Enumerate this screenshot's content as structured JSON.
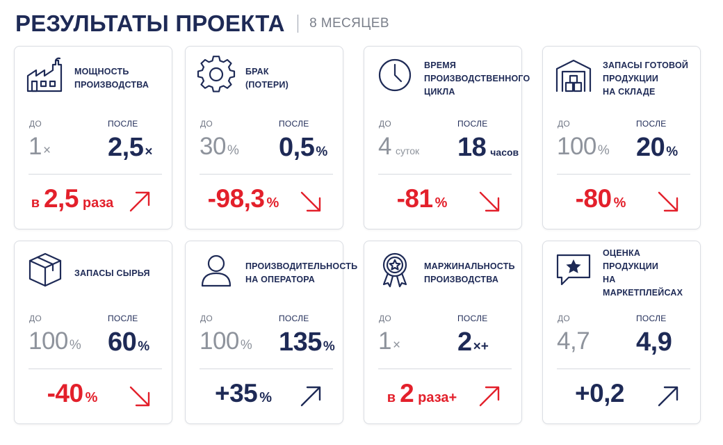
{
  "header": {
    "title": "РЕЗУЛЬТАТЫ ПРОЕКТА",
    "subtitle": "8 МЕСЯЦЕВ"
  },
  "colors": {
    "navy": "#1e2a56",
    "red": "#e3202b",
    "grey": "#8e939c"
  },
  "cards": [
    {
      "icon": "factory-icon",
      "label": "МОЩНОСТЬ\nПРОИЗВОДСТВА",
      "before_label": "ДО",
      "after_label": "ПОСЛЕ",
      "before_value": "1",
      "before_unit": "×",
      "after_value": "2,5",
      "after_unit": "×",
      "change_prefix": "в",
      "change_value": "2,5",
      "change_suffix": "раза",
      "change_color": "red",
      "direction": "up"
    },
    {
      "icon": "gear-icon",
      "label": "БРАК\n(ПОТЕРИ)",
      "before_label": "ДО",
      "after_label": "ПОСЛЕ",
      "before_value": "30",
      "before_unit": "%",
      "after_value": "0,5",
      "after_unit": "%",
      "change_prefix": "",
      "change_value": "-98,3",
      "change_suffix": "%",
      "change_color": "red",
      "direction": "down"
    },
    {
      "icon": "clock-icon",
      "label": "ВРЕМЯ\nПРОИЗВОДСТВЕННОГО\nЦИКЛА",
      "before_label": "ДО",
      "after_label": "ПОСЛЕ",
      "before_value": "4",
      "before_unit": "суток",
      "after_value": "18",
      "after_unit": "часов",
      "change_prefix": "",
      "change_value": "-81",
      "change_suffix": "%",
      "change_color": "red",
      "direction": "down"
    },
    {
      "icon": "warehouse-icon",
      "label": "ЗАПАСЫ ГОТОВОЙ\nПРОДУКЦИИ\nНА СКЛАДЕ",
      "before_label": "ДО",
      "after_label": "ПОСЛЕ",
      "before_value": "100",
      "before_unit": "%",
      "after_value": "20",
      "after_unit": "%",
      "change_prefix": "",
      "change_value": "-80",
      "change_suffix": "%",
      "change_color": "red",
      "direction": "down"
    },
    {
      "icon": "box-icon",
      "label": "ЗАПАСЫ СЫРЬЯ",
      "before_label": "ДО",
      "after_label": "ПОСЛЕ",
      "before_value": "100",
      "before_unit": "%",
      "after_value": "60",
      "after_unit": "%",
      "change_prefix": "",
      "change_value": "-40",
      "change_suffix": "%",
      "change_color": "red",
      "direction": "down"
    },
    {
      "icon": "person-icon",
      "label": "ПРОИЗВОДИТЕЛЬНОСТЬ\nНА ОПЕРАТОРА",
      "before_label": "ДО",
      "after_label": "ПОСЛЕ",
      "before_value": "100",
      "before_unit": "%",
      "after_value": "135",
      "after_unit": "%",
      "change_prefix": "",
      "change_value": "+35",
      "change_suffix": "%",
      "change_color": "blue",
      "direction": "up"
    },
    {
      "icon": "award-icon",
      "label": "МАРЖИНАЛЬНОСТЬ\nПРОИЗВОДСТВА",
      "before_label": "ДО",
      "after_label": "ПОСЛЕ",
      "before_value": "1",
      "before_unit": "×",
      "after_value": "2",
      "after_unit": "×+",
      "change_prefix": "в",
      "change_value": "2",
      "change_suffix": "раза+",
      "change_color": "red",
      "direction": "up"
    },
    {
      "icon": "star-message-icon",
      "label": "ОЦЕНКА ПРОДУКЦИИ\nНА МАРКЕТПЛЕЙСАХ",
      "before_label": "ДО",
      "after_label": "ПОСЛЕ",
      "before_value": "4,7",
      "before_unit": "",
      "after_value": "4,9",
      "after_unit": "",
      "change_prefix": "",
      "change_value": "+0,2",
      "change_suffix": "",
      "change_color": "blue",
      "direction": "up"
    }
  ]
}
